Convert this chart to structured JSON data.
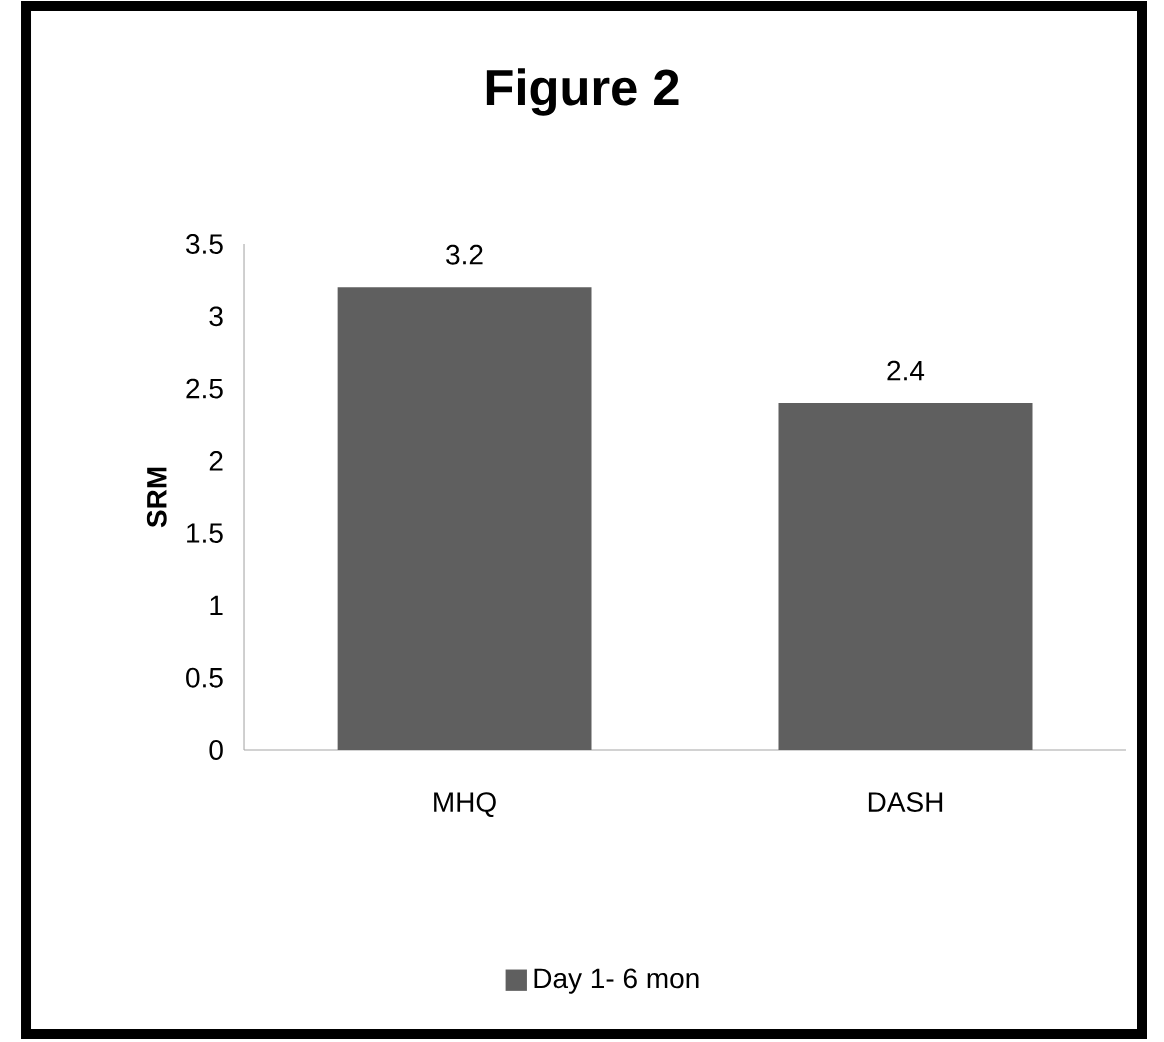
{
  "chart_data": {
    "type": "bar",
    "title": "Figure 2",
    "ylabel": "SRM",
    "categories": [
      "MHQ",
      "DASH"
    ],
    "series": [
      {
        "name": "Day 1- 6 mon",
        "color": "#5f5f5f",
        "values": [
          3.2,
          2.4
        ]
      }
    ],
    "ylim": [
      0,
      3.5
    ],
    "yticks": [
      0,
      0.5,
      1,
      1.5,
      2,
      2.5,
      3,
      3.5
    ],
    "data_labels": true,
    "legend": "bottom"
  }
}
